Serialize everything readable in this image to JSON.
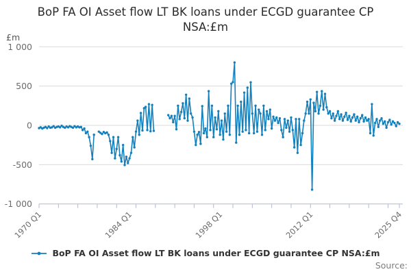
{
  "title_lines": [
    "BoP FA OI Asset flow LT BK loans under ECGD guarantee CP",
    "NSA:£m"
  ],
  "y_unit_label": "£m",
  "source_label": "Source:",
  "legend": {
    "label": "BoP FA OI Asset flow LT BK loans under ECGD guarantee CP NSA:£m"
  },
  "colors": {
    "line": "#1380BE",
    "grid": "#DADADA",
    "axis": "#AFB9D4",
    "tick_label": "#6B6B6B",
    "title_text": "#2B2B2B",
    "legend_text": "#333333",
    "source_text": "#7D7D7D"
  },
  "chart_data": {
    "type": "line",
    "title": "BoP FA OI Asset flow LT BK loans under ECGD guarantee CP NSA:£m",
    "ylabel": "£m",
    "ylim": [
      -1000,
      1000
    ],
    "grid": "horizontal",
    "legend_position": "bottom",
    "marker": "circle",
    "x_start": "1970 Q1",
    "x_end": "2025 Q4",
    "x_frequency": "quarterly",
    "x_tick_labels": [
      {
        "label": "1970 Q1",
        "index": 0
      },
      {
        "label": "1984 Q1",
        "index": 56
      },
      {
        "label": "1998 Q1",
        "index": 112
      },
      {
        "label": "2012 Q1",
        "index": 168
      },
      {
        "label": "2025 Q4",
        "index": 223
      }
    ],
    "x_minor_tick_every_quarters": 12,
    "y_ticks": [
      1000,
      500,
      0,
      -500,
      -1000
    ],
    "y_tick_labels": [
      "1 000",
      "500",
      "0",
      "-500",
      "-1 000"
    ],
    "values": [
      -35,
      -25,
      -40,
      -30,
      -20,
      -35,
      -15,
      -30,
      -25,
      -10,
      -30,
      -20,
      -15,
      -25,
      -5,
      -20,
      -30,
      -15,
      -25,
      -10,
      -20,
      -30,
      -10,
      -25,
      -15,
      -25,
      -20,
      -60,
      -40,
      -100,
      -80,
      -150,
      -260,
      -430,
      -120,
      null,
      null,
      -80,
      -95,
      -110,
      -85,
      -100,
      -90,
      -120,
      -200,
      -350,
      -150,
      -420,
      -300,
      -150,
      -380,
      -460,
      -250,
      -505,
      -400,
      -480,
      -420,
      -350,
      -150,
      -280,
      -80,
      60,
      -120,
      157,
      -65,
      218,
      235,
      -60,
      270,
      -75,
      260,
      -70,
      null,
      null,
      null,
      null,
      null,
      null,
      null,
      null,
      130,
      90,
      120,
      40,
      120,
      -50,
      250,
      80,
      170,
      280,
      90,
      390,
      60,
      340,
      150,
      100,
      -80,
      -250,
      -120,
      -85,
      -235,
      245,
      -100,
      -40,
      -150,
      435,
      -60,
      250,
      -150,
      100,
      -50,
      180,
      -120,
      60,
      -180,
      150,
      -80,
      250,
      -120,
      530,
      550,
      800,
      -220,
      250,
      -120,
      300,
      -80,
      417,
      -60,
      480,
      -100,
      548,
      150,
      -100,
      250,
      -80,
      200,
      150,
      -120,
      250,
      -60,
      180,
      80,
      200,
      -40,
      110,
      60,
      100,
      30,
      90,
      -60,
      -150,
      80,
      -30,
      60,
      -80,
      100,
      -60,
      -280,
      80,
      -350,
      80,
      -250,
      -100,
      60,
      150,
      300,
      150,
      330,
      -818,
      287,
      180,
      426,
      150,
      250,
      435,
      200,
      400,
      230,
      150,
      180,
      90,
      150,
      60,
      120,
      180,
      80,
      140,
      60,
      110,
      160,
      70,
      120,
      50,
      100,
      140,
      60,
      110,
      40,
      90,
      130,
      50,
      100,
      60,
      80,
      -100,
      270,
      -130,
      30,
      80,
      -20,
      60,
      90,
      20,
      50,
      -30,
      40,
      70,
      10,
      50,
      30,
      -10,
      40,
      20
    ]
  }
}
